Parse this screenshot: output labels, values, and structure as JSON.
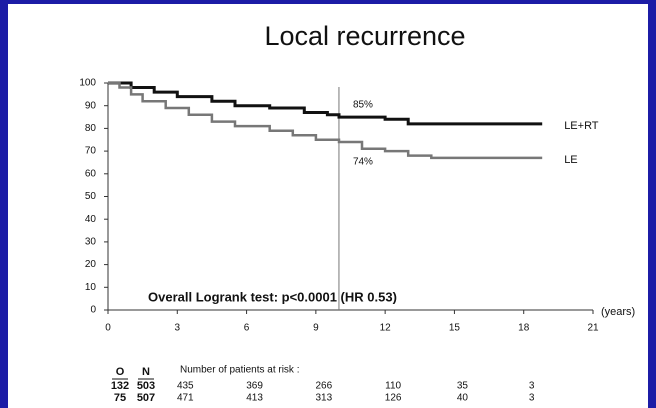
{
  "chart_data": {
    "type": "line",
    "title": "Local recurrence",
    "x_label": "(years)",
    "xlim": [
      0,
      21
    ],
    "xticks": [
      0,
      3,
      6,
      9,
      12,
      15,
      18,
      21
    ],
    "ylim": [
      0,
      100
    ],
    "yticks": [
      0,
      10,
      20,
      30,
      40,
      50,
      60,
      70,
      80,
      90,
      100
    ],
    "vline": 10,
    "series": [
      {
        "name": "LE+RT",
        "color": "#111111",
        "x": [
          0,
          1,
          1,
          2,
          2,
          3,
          3,
          4.5,
          4.5,
          5.5,
          5.5,
          7,
          7,
          8.5,
          8.5,
          9.5,
          9.5,
          10,
          10,
          12,
          12,
          13,
          13,
          18.8
        ],
        "values": [
          100,
          100,
          98,
          98,
          96,
          96,
          94,
          94,
          92,
          92,
          90,
          90,
          89,
          89,
          87,
          87,
          86,
          86,
          85,
          85,
          84,
          84,
          82,
          82
        ]
      },
      {
        "name": "LE",
        "color": "#777777",
        "x": [
          0,
          0.5,
          0.5,
          1,
          1,
          1.5,
          1.5,
          2.5,
          2.5,
          3.5,
          3.5,
          4.5,
          4.5,
          5.5,
          5.5,
          7,
          7,
          8,
          8,
          9,
          9,
          10,
          10,
          11,
          11,
          12,
          12,
          13,
          13,
          14,
          14,
          18.8
        ],
        "values": [
          100,
          100,
          98,
          98,
          95,
          95,
          92,
          92,
          89,
          89,
          86,
          86,
          83,
          83,
          81,
          81,
          79,
          79,
          77,
          77,
          75,
          75,
          74,
          74,
          71,
          71,
          70,
          70,
          68,
          68,
          67,
          67
        ]
      }
    ],
    "annotations": [
      "85%",
      "74%"
    ],
    "test_label": "Overall Logrank test: p<0.0001 (HR 0.53)",
    "risk_table": {
      "title": "Number of patients at risk :",
      "columns": [
        "O",
        "N"
      ],
      "rows": [
        {
          "events": 132,
          "n": 503,
          "at_risk": [
            435,
            369,
            266,
            110,
            35,
            3
          ]
        },
        {
          "events": 75,
          "n": 507,
          "at_risk": [
            471,
            413,
            313,
            126,
            40,
            3
          ]
        }
      ]
    }
  }
}
